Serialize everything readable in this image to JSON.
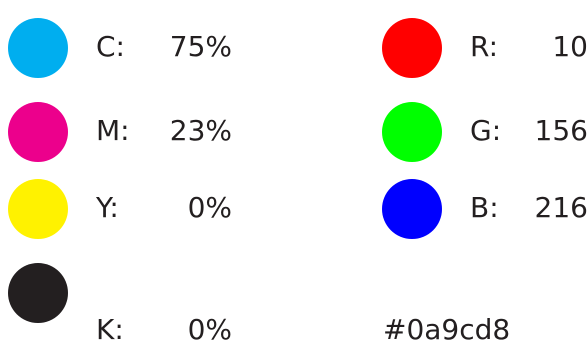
{
  "cmyk": [
    {
      "label": "C:",
      "value": "75%",
      "color": "#00aeef"
    },
    {
      "label": "M:",
      "value": "23%",
      "color": "#ec008c"
    },
    {
      "label": "Y:",
      "value": "0%",
      "color": "#fff200"
    },
    {
      "label": "K:",
      "value": "0%",
      "color": "#231f20"
    }
  ],
  "rgb": [
    {
      "label": "R:",
      "value": "10",
      "color": "#ff0000"
    },
    {
      "label": "G:",
      "value": "156",
      "color": "#00ff00"
    },
    {
      "label": "B:",
      "value": "216",
      "color": "#0000ff"
    }
  ],
  "hex": "#0a9cd8"
}
